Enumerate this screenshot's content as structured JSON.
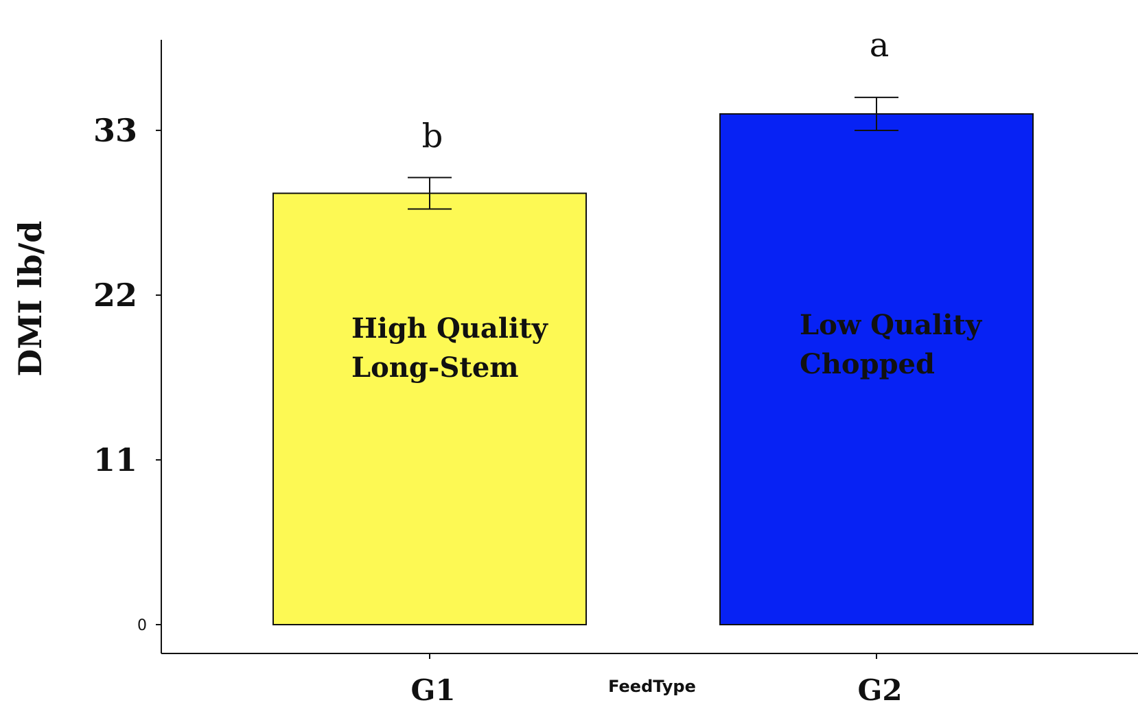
{
  "chart_data": {
    "type": "bar",
    "title": "",
    "xlabel": "FeedType",
    "ylabel": "DMI lb/d",
    "ylim": [
      0,
      37.5
    ],
    "yticks": [
      0,
      11,
      22,
      33
    ],
    "ytick_labels": [
      "0",
      "11",
      "22",
      "33"
    ],
    "categories": [
      "G1",
      "G2"
    ],
    "values": [
      28.8,
      34.1
    ],
    "errors": [
      1.05,
      1.1
    ],
    "colors": [
      "#fdf954",
      "#0722f4"
    ],
    "bar_labels": [
      [
        "High Quality",
        "Long-Stem"
      ],
      [
        "Low Quality",
        "Chopped"
      ]
    ],
    "significance": [
      "b",
      "a"
    ],
    "grid": false,
    "legend": "none"
  }
}
